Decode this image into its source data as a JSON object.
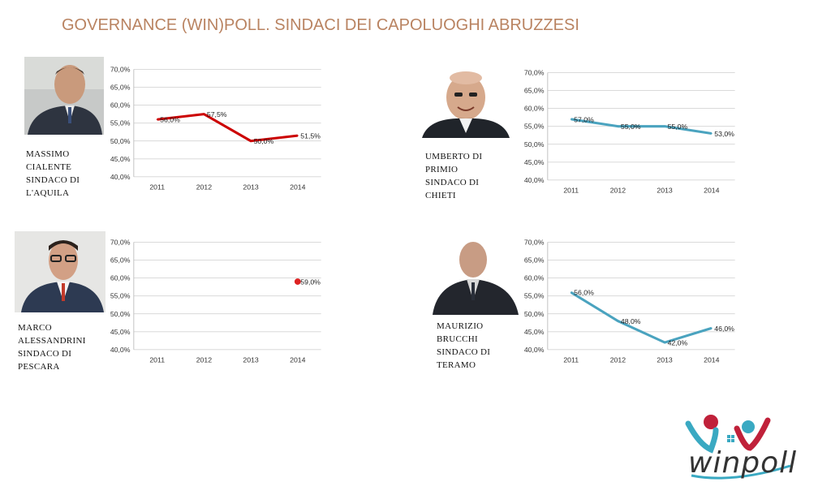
{
  "title": "GOVERNANCE (WIN)POLL. SINDACI DEI CAPOLUOGHI ABRUZZESI",
  "panels": [
    {
      "caption": [
        "MASSIMO",
        "CIALENTE",
        "SINDACO DI",
        "L'AQUILA"
      ],
      "photo": "mayor-portrait"
    },
    {
      "caption": [
        "UMBERTO DI",
        "PRIMIO",
        "SINDACO DI",
        "CHIETI"
      ],
      "photo": "mayor-portrait"
    },
    {
      "caption": [
        "MARCO",
        "ALESSANDRINI",
        "SINDACO DI",
        "PESCARA"
      ],
      "photo": "mayor-portrait"
    },
    {
      "caption": [
        "MAURIZIO",
        "BRUCCHI",
        "SINDACO DI",
        "TERAMO"
      ],
      "photo": "mayor-portrait"
    }
  ],
  "chart_data": [
    {
      "type": "line",
      "categories": [
        "2011",
        "2012",
        "2013",
        "2014"
      ],
      "series": [
        {
          "values": [
            56.0,
            57.5,
            50.0,
            51.5
          ],
          "color": "#cc0000"
        }
      ],
      "data_labels": [
        "56,0%",
        "57,5%",
        "50,0%",
        "51,5%"
      ],
      "y_ticks": [
        "40,0%",
        "45,0%",
        "50,0%",
        "55,0%",
        "60,0%",
        "65,0%",
        "70,0%"
      ],
      "ylim": [
        40,
        70
      ],
      "grid": true
    },
    {
      "type": "line",
      "categories": [
        "2011",
        "2012",
        "2013",
        "2014"
      ],
      "series": [
        {
          "values": [
            57.0,
            55.0,
            55.0,
            53.0
          ],
          "color": "#4aa3bf"
        }
      ],
      "data_labels": [
        "57,0%",
        "55,0%",
        "55,0%",
        "53,0%"
      ],
      "y_ticks": [
        "40,0%",
        "45,0%",
        "50,0%",
        "55,0%",
        "60,0%",
        "65,0%",
        "70,0%"
      ],
      "ylim": [
        40,
        70
      ],
      "grid": true
    },
    {
      "type": "scatter",
      "categories": [
        "2011",
        "2012",
        "2013",
        "2014"
      ],
      "series": [
        {
          "values": [
            null,
            null,
            null,
            59.0
          ],
          "color": "#dd2222"
        }
      ],
      "data_labels": [
        "",
        "",
        "",
        "59,0%"
      ],
      "y_ticks": [
        "40,0%",
        "45,0%",
        "50,0%",
        "55,0%",
        "60,0%",
        "65,0%",
        "70,0%"
      ],
      "ylim": [
        40,
        70
      ],
      "grid": true
    },
    {
      "type": "line",
      "categories": [
        "2011",
        "2012",
        "2013",
        "2014"
      ],
      "series": [
        {
          "values": [
            56.0,
            48.0,
            42.0,
            46.0
          ],
          "color": "#4aa3bf"
        }
      ],
      "data_labels": [
        "56,0%",
        "48,0%",
        "42,0%",
        "46,0%"
      ],
      "y_ticks": [
        "40,0%",
        "45,0%",
        "50,0%",
        "55,0%",
        "60,0%",
        "65,0%",
        "70,0%"
      ],
      "ylim": [
        40,
        70
      ],
      "grid": true
    }
  ],
  "logo": {
    "text": "winpoll",
    "colors": [
      "#c0213a",
      "#3aa9c2"
    ]
  }
}
